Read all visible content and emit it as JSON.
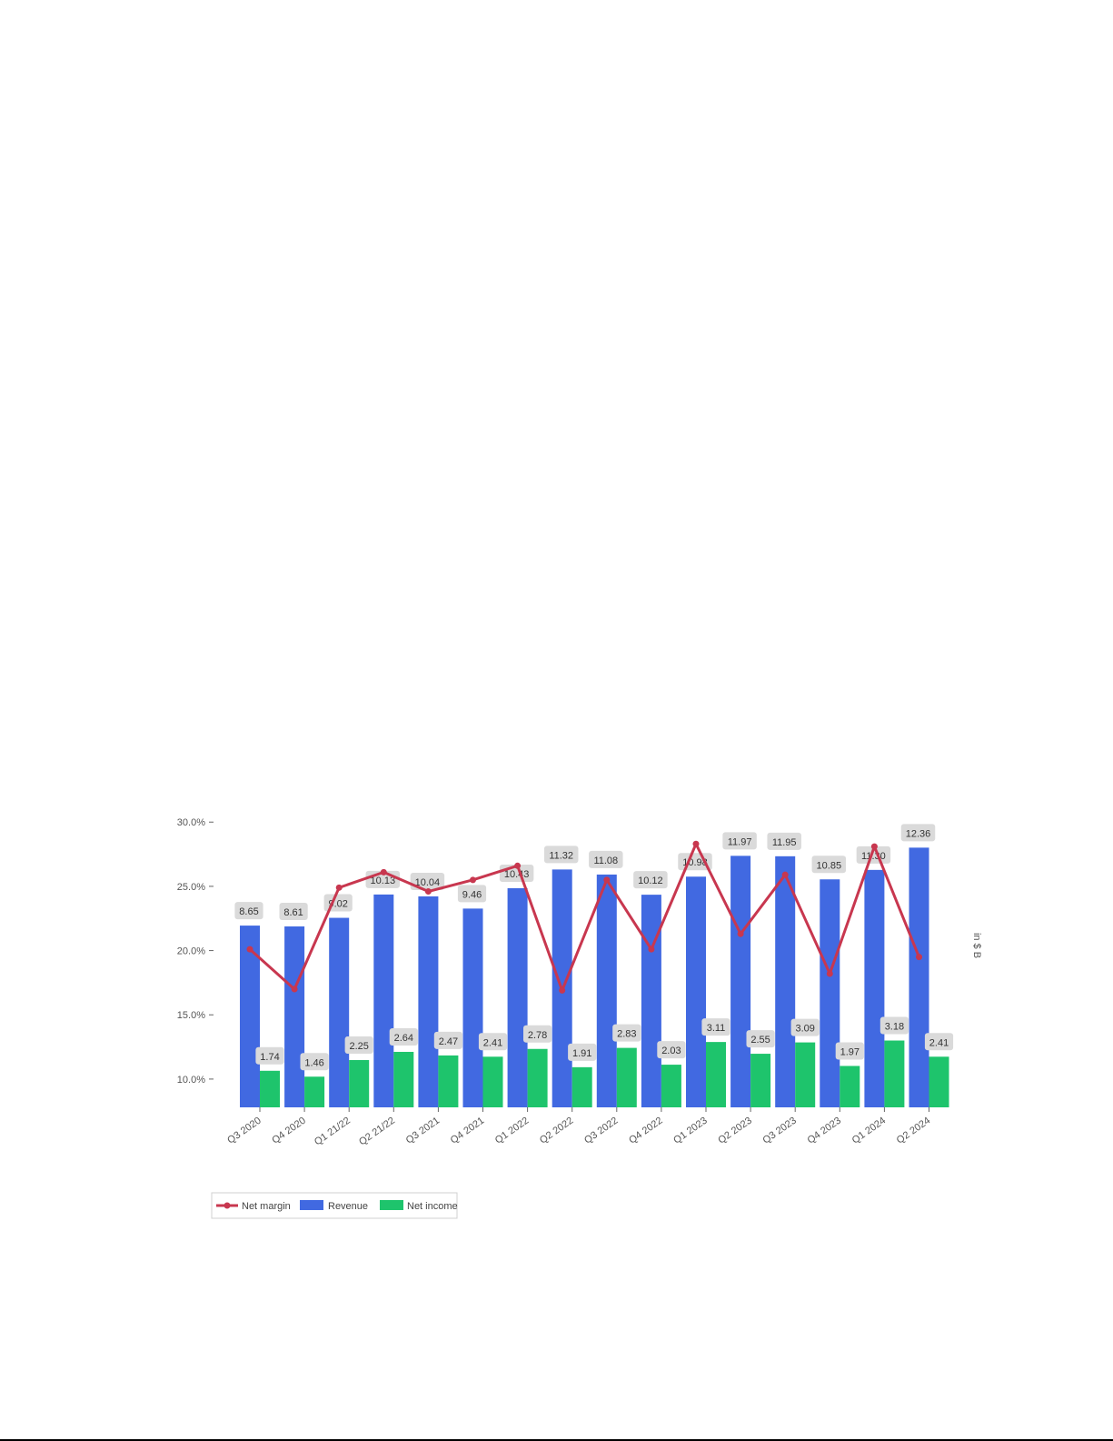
{
  "chart_data": {
    "type": "bar",
    "categories": [
      "Q3 2020",
      "Q4 2020",
      "Q1 21/22",
      "Q2 21/22",
      "Q3 2021",
      "Q4 2021",
      "Q1 2022",
      "Q2 2022",
      "Q3 2022",
      "Q4 2022",
      "Q1 2023",
      "Q2 2023",
      "Q3 2023",
      "Q4 2023",
      "Q1 2024",
      "Q2 2024"
    ],
    "series": [
      {
        "name": "Revenue",
        "kind": "bar",
        "color": "#4169e1",
        "values": [
          8.65,
          8.61,
          9.02,
          10.13,
          10.04,
          9.46,
          10.43,
          11.32,
          11.08,
          10.12,
          10.98,
          11.97,
          11.95,
          10.85,
          11.3,
          12.36
        ]
      },
      {
        "name": "Net income",
        "kind": "bar",
        "color": "#1ec46c",
        "values": [
          1.74,
          1.46,
          2.25,
          2.64,
          2.47,
          2.41,
          2.78,
          1.91,
          2.83,
          2.03,
          3.11,
          2.55,
          3.09,
          1.97,
          3.18,
          2.41
        ]
      },
      {
        "name": "Net margin",
        "kind": "line",
        "color": "#c8374f",
        "axis": "left",
        "values": [
          20.1,
          17.0,
          24.9,
          26.1,
          24.6,
          25.5,
          26.6,
          16.9,
          25.5,
          20.1,
          28.3,
          21.3,
          25.9,
          18.2,
          28.1,
          19.5
        ]
      }
    ],
    "y_left": {
      "ticks": [
        10,
        15,
        20,
        25,
        30
      ],
      "tick_labels": [
        "10.0%",
        "15.0%",
        "20.0%",
        "25.0%",
        "30.0%"
      ],
      "range": [
        7.8,
        30.3
      ]
    },
    "y_right": {
      "label": "in $ B",
      "range": [
        0,
        13.76
      ]
    },
    "grid": false,
    "legend": {
      "placement": "bottom-left",
      "entries": [
        "Net margin",
        "Revenue",
        "Net income"
      ]
    }
  }
}
